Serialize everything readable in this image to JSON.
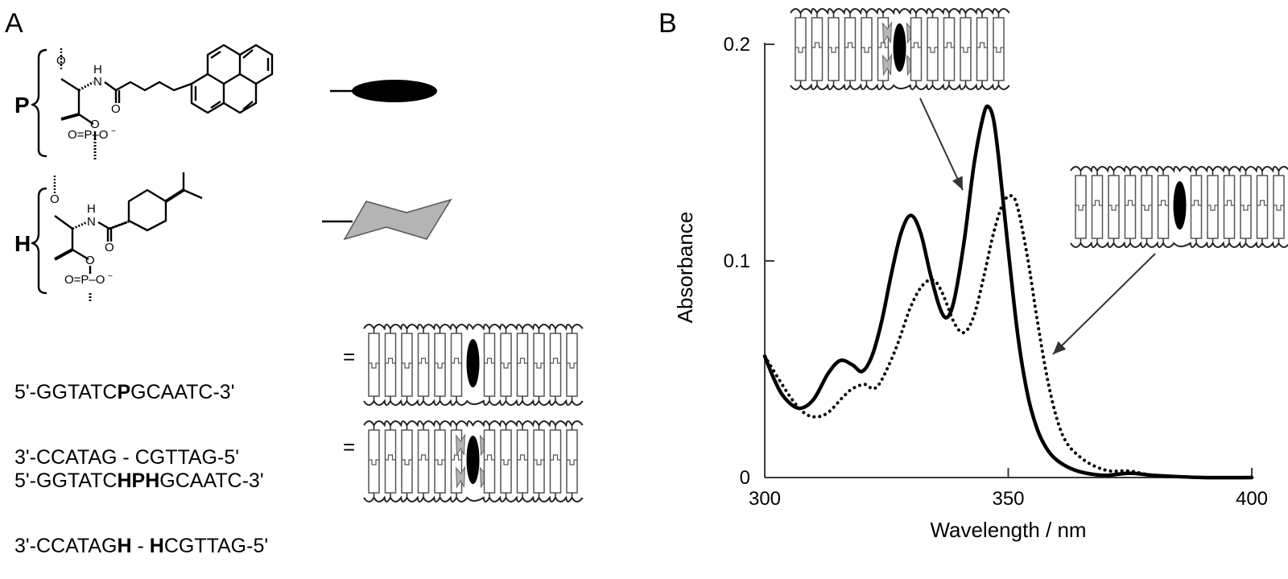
{
  "panels": {
    "a": {
      "label": "A",
      "monomers": [
        {
          "label": "P",
          "name": "pyrene-D-threoninol",
          "symbol": "black-ellipse"
        },
        {
          "label": "H",
          "name": "isopropylcyclohexane-D-threoninol",
          "symbol": "gray-cyclohexane"
        }
      ],
      "chem_labels": {
        "O": "O",
        "H": "H",
        "N": "N",
        "P": "P",
        "O_minus": "O",
        "minus": "−",
        "eq": "="
      },
      "duplexes": [
        {
          "top": {
            "prefix": "5'-GGTATC",
            "mod": "P",
            "mod2": "",
            "mod3": "",
            "suffix": "GCAATC-3'"
          },
          "bottom": {
            "prefix": "3'-CCATAG",
            "mid": " - ",
            "mod_l": "",
            "mod_r": "",
            "suffix": "CGTTAG-5'"
          },
          "equals": "="
        },
        {
          "top": {
            "prefix": "5'-GGTATC",
            "mod": "H",
            "mod2": "P",
            "mod3": "H",
            "suffix": "GCAATC-3'"
          },
          "bottom": {
            "prefix": "3'-CCATAG",
            "mod_l": "H",
            "mid": " - ",
            "mod_r": "H",
            "suffix": "CGTTAG-5'"
          },
          "equals": "="
        }
      ]
    },
    "b": {
      "label": "B"
    }
  },
  "chart_data": {
    "type": "line",
    "title": "",
    "xlabel": "Wavelength / nm",
    "ylabel": "Absorbance",
    "xlim": [
      300,
      400
    ],
    "ylim": [
      0,
      0.2
    ],
    "xticks": [
      300,
      350,
      400
    ],
    "yticks": [
      0,
      0.1,
      0.2
    ],
    "ytick_labels": [
      "0",
      "0.1",
      "0.2"
    ],
    "grid": false,
    "legend": "none (series identified by inset duplex diagrams with arrows)",
    "series": [
      {
        "name": "P duplex flanked by H (HPH / H-H)",
        "style": "solid",
        "x": [
          300,
          302,
          304,
          307,
          310,
          313,
          315.5,
          318,
          320,
          322,
          324,
          326,
          328,
          330,
          332,
          334,
          336,
          337.5,
          339,
          341,
          343,
          345,
          346,
          347,
          348,
          350,
          352,
          354,
          356,
          358,
          360,
          363,
          366,
          370,
          375,
          380,
          390,
          400
        ],
        "y": [
          0.056,
          0.045,
          0.037,
          0.032,
          0.036,
          0.048,
          0.054,
          0.052,
          0.049,
          0.056,
          0.072,
          0.094,
          0.113,
          0.121,
          0.113,
          0.094,
          0.078,
          0.074,
          0.083,
          0.11,
          0.145,
          0.168,
          0.171,
          0.165,
          0.148,
          0.105,
          0.065,
          0.038,
          0.022,
          0.013,
          0.008,
          0.004,
          0.002,
          0.001,
          0.002,
          0.001,
          0.0,
          0.0
        ]
      },
      {
        "name": "P duplex without H (P / -)",
        "style": "dotted",
        "x": [
          300,
          305,
          308,
          310.5,
          313,
          316,
          318,
          320.5,
          322.3,
          324,
          327,
          330,
          332.5,
          334.7,
          336.5,
          339,
          341,
          343,
          345,
          347,
          349,
          350.7,
          352,
          354,
          356,
          358,
          360,
          362,
          365,
          368,
          371,
          375,
          380,
          390,
          400
        ],
        "y": [
          0.056,
          0.038,
          0.03,
          0.028,
          0.03,
          0.037,
          0.041,
          0.043,
          0.041,
          0.045,
          0.06,
          0.079,
          0.089,
          0.091,
          0.085,
          0.071,
          0.067,
          0.075,
          0.093,
          0.113,
          0.127,
          0.13,
          0.124,
          0.101,
          0.072,
          0.046,
          0.027,
          0.016,
          0.009,
          0.005,
          0.003,
          0.003,
          0.001,
          0.0,
          0.0
        ]
      }
    ],
    "annotations": [
      {
        "text": "duplex with P sandwiched by H residues (inset, top)",
        "points_to": "solid",
        "arrow_target": [
          343,
          0.137
        ]
      },
      {
        "text": "duplex with P only (inset, right)",
        "points_to": "dotted",
        "arrow_target": [
          355,
          0.055
        ]
      }
    ],
    "peaks": {
      "solid": [
        [
          315.5,
          0.054
        ],
        [
          330,
          0.121
        ],
        [
          346,
          0.171
        ]
      ],
      "dotted": [
        [
          320.5,
          0.043
        ],
        [
          334.7,
          0.091
        ],
        [
          350.7,
          0.13
        ]
      ]
    }
  },
  "colors": {
    "line": "#000000",
    "axis": "#3a3a3a",
    "hydrophobe_fill": "#b4b4b4",
    "pyrene_fill": "#000000"
  }
}
